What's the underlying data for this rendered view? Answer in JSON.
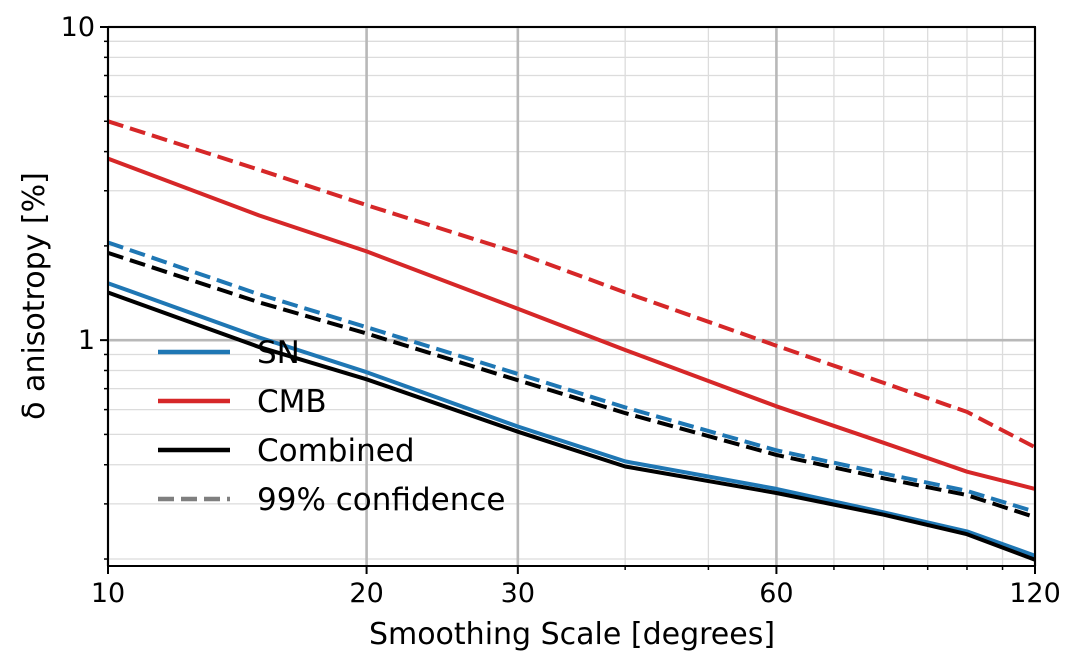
{
  "chart_data": {
    "type": "line",
    "title": "",
    "xlabel": "Smoothing Scale [degrees]",
    "ylabel": "δ anisotropy [%]",
    "xscale": "log",
    "yscale": "log",
    "xlim": [
      10,
      120
    ],
    "ylim": [
      0.19,
      10
    ],
    "x_ticks": [
      10,
      20,
      30,
      60,
      120
    ],
    "x_tick_labels": [
      "10",
      "20",
      "30",
      "60",
      "120"
    ],
    "y_ticks": [
      1,
      10
    ],
    "y_tick_labels": [
      "1",
      "10"
    ],
    "grid": true,
    "legend_position": "lower-left",
    "legend": [
      {
        "label": "SN",
        "color": "#1f77b4",
        "style": "solid"
      },
      {
        "label": "CMB",
        "color": "#d62728",
        "style": "solid"
      },
      {
        "label": "Combined",
        "color": "#000000",
        "style": "solid"
      },
      {
        "label": "99% confidence",
        "color": "#7f7f7f",
        "style": "dashed"
      }
    ],
    "x": [
      10,
      15,
      20,
      30,
      40,
      60,
      80,
      100,
      120
    ],
    "series": [
      {
        "name": "SN",
        "color": "#1f77b4",
        "style": "solid",
        "values": [
          1.52,
          1.02,
          0.79,
          0.53,
          0.41,
          0.335,
          0.282,
          0.245,
          0.205
        ]
      },
      {
        "name": "CMB",
        "color": "#d62728",
        "style": "solid",
        "values": [
          3.8,
          2.5,
          1.92,
          1.26,
          0.93,
          0.615,
          0.47,
          0.38,
          0.335
        ]
      },
      {
        "name": "Combined",
        "color": "#000000",
        "style": "solid",
        "values": [
          1.42,
          0.95,
          0.75,
          0.51,
          0.395,
          0.325,
          0.277,
          0.24,
          0.199
        ]
      },
      {
        "name": "SN 99% confidence",
        "color": "#1f77b4",
        "style": "dashed",
        "values": [
          2.05,
          1.4,
          1.1,
          0.78,
          0.61,
          0.445,
          0.375,
          0.33,
          0.283
        ]
      },
      {
        "name": "CMB 99% confidence",
        "color": "#d62728",
        "style": "dashed",
        "values": [
          5.0,
          3.5,
          2.7,
          1.9,
          1.42,
          0.96,
          0.73,
          0.59,
          0.455
        ]
      },
      {
        "name": "Combined 99% confidence",
        "color": "#000000",
        "style": "dashed",
        "values": [
          1.9,
          1.32,
          1.05,
          0.745,
          0.585,
          0.43,
          0.362,
          0.32,
          0.272
        ]
      }
    ]
  }
}
